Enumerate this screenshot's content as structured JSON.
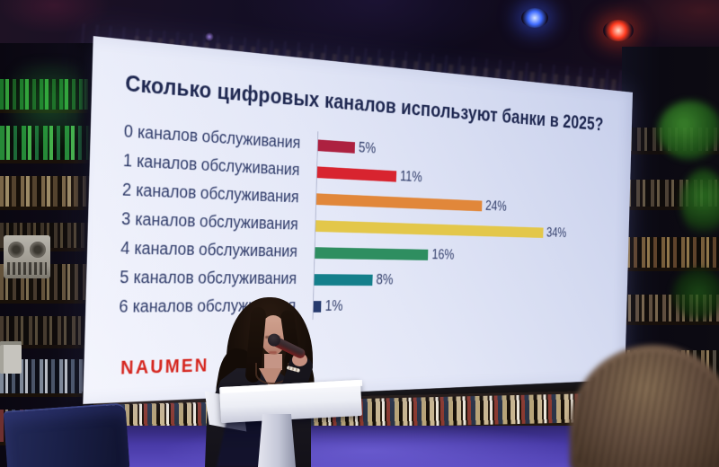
{
  "slide": {
    "title": "Сколько цифровых каналов используют банки в 2025?",
    "title_color": "#1e2750",
    "background_color": "#e7eaf8",
    "logo_text": "NAUMEN",
    "logo_color": "#d5261f"
  },
  "chart_data": {
    "type": "bar",
    "orientation": "horizontal",
    "title": "Сколько цифровых каналов используют банки в 2025?",
    "categories": [
      "0 каналов обслуживания",
      "1 каналов обслуживания",
      "2 каналов обслуживания",
      "3 каналов обслуживания",
      "4 каналов обслуживания",
      "5 каналов обслуживания",
      "6 каналов обслуживания"
    ],
    "values": [
      5,
      11,
      24,
      34,
      16,
      8,
      1
    ],
    "unit": "%",
    "xlim": [
      0,
      40
    ],
    "grid": false,
    "legend": false,
    "rows": [
      {
        "label": "0 каналов обслуживания",
        "value": 5,
        "display": "5%",
        "color": "#ad2140"
      },
      {
        "label": "1 каналов обслуживания",
        "value": 11,
        "display": "11%",
        "color": "#d8242f"
      },
      {
        "label": "2 каналов обслуживания",
        "value": 24,
        "display": "24%",
        "color": "#e1873a"
      },
      {
        "label": "3 каналов обслуживания",
        "value": 34,
        "display": "34%",
        "color": "#e3c74a"
      },
      {
        "label": "4 каналов обслуживания",
        "value": 16,
        "display": "16%",
        "color": "#2e8e60"
      },
      {
        "label": "5 каналов обслуживания",
        "value": 8,
        "display": "8%",
        "color": "#147f8b"
      },
      {
        "label": "6 каналов обслуживания",
        "value": 1,
        "display": "1%",
        "color": "#263a6d"
      }
    ]
  }
}
